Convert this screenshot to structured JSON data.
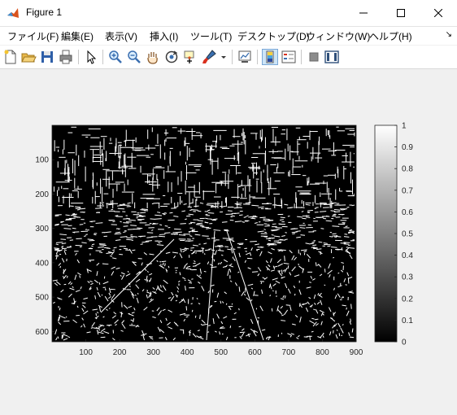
{
  "window": {
    "title": "Figure 1"
  },
  "menu": [
    {
      "label": "ファイル(F)"
    },
    {
      "label": "編集(E)"
    },
    {
      "label": "表示(V)"
    },
    {
      "label": "挿入(I)"
    },
    {
      "label": "ツール(T)"
    },
    {
      "label": "デスクトップ(D)"
    },
    {
      "label": "ウィンドウ(W)"
    },
    {
      "label": "ヘルプ(H)"
    }
  ],
  "toolbar_icons": [
    "new-figure-icon",
    "open-file-icon",
    "save-icon",
    "print-icon",
    "edit-plot-arrow-icon",
    "zoom-in-icon",
    "zoom-out-icon",
    "pan-hand-icon",
    "rotate-3d-icon",
    "data-cursor-icon",
    "brush-icon",
    "brush-dropdown-icon",
    "link-plot-icon",
    "colorbar-icon",
    "legend-icon",
    "hide-plot-tools-icon",
    "show-plot-tools-icon"
  ],
  "axes": {
    "x_ticks": [
      "100",
      "200",
      "300",
      "400",
      "500",
      "600",
      "700",
      "800",
      "900"
    ],
    "y_ticks": [
      "100",
      "200",
      "300",
      "400",
      "500",
      "600"
    ]
  },
  "colorbar": {
    "ticks": [
      "1",
      "0.9",
      "0.8",
      "0.7",
      "0.6",
      "0.5",
      "0.4",
      "0.3",
      "0.2",
      "0.1",
      "0"
    ]
  },
  "chart_data": {
    "type": "heatmap",
    "colormap": "gray",
    "image_kind": "binary edge map",
    "xlim": [
      0,
      900
    ],
    "ylim": [
      0,
      630
    ],
    "y_reversed": true,
    "clim": [
      0,
      1
    ],
    "colorbar_ticks": [
      1,
      0.9,
      0.8,
      0.7,
      0.6,
      0.5,
      0.4,
      0.3,
      0.2,
      0.1,
      0
    ],
    "x_ticks": [
      100,
      200,
      300,
      400,
      500,
      600,
      700,
      800,
      900
    ],
    "y_ticks": [
      100,
      200,
      300,
      400,
      500,
      600
    ]
  }
}
